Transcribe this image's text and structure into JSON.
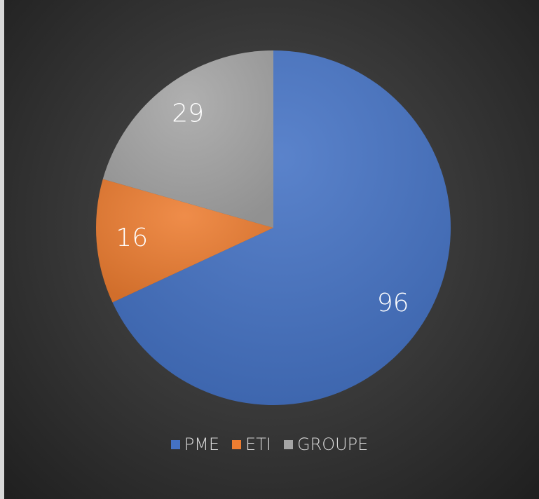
{
  "chart_data": {
    "type": "pie",
    "categories": [
      "PME",
      "ETI",
      "GROUPE"
    ],
    "values": [
      96,
      16,
      29
    ],
    "colors": [
      "#4472c4",
      "#ed7d31",
      "#a5a5a5"
    ],
    "legend": "bottom"
  }
}
